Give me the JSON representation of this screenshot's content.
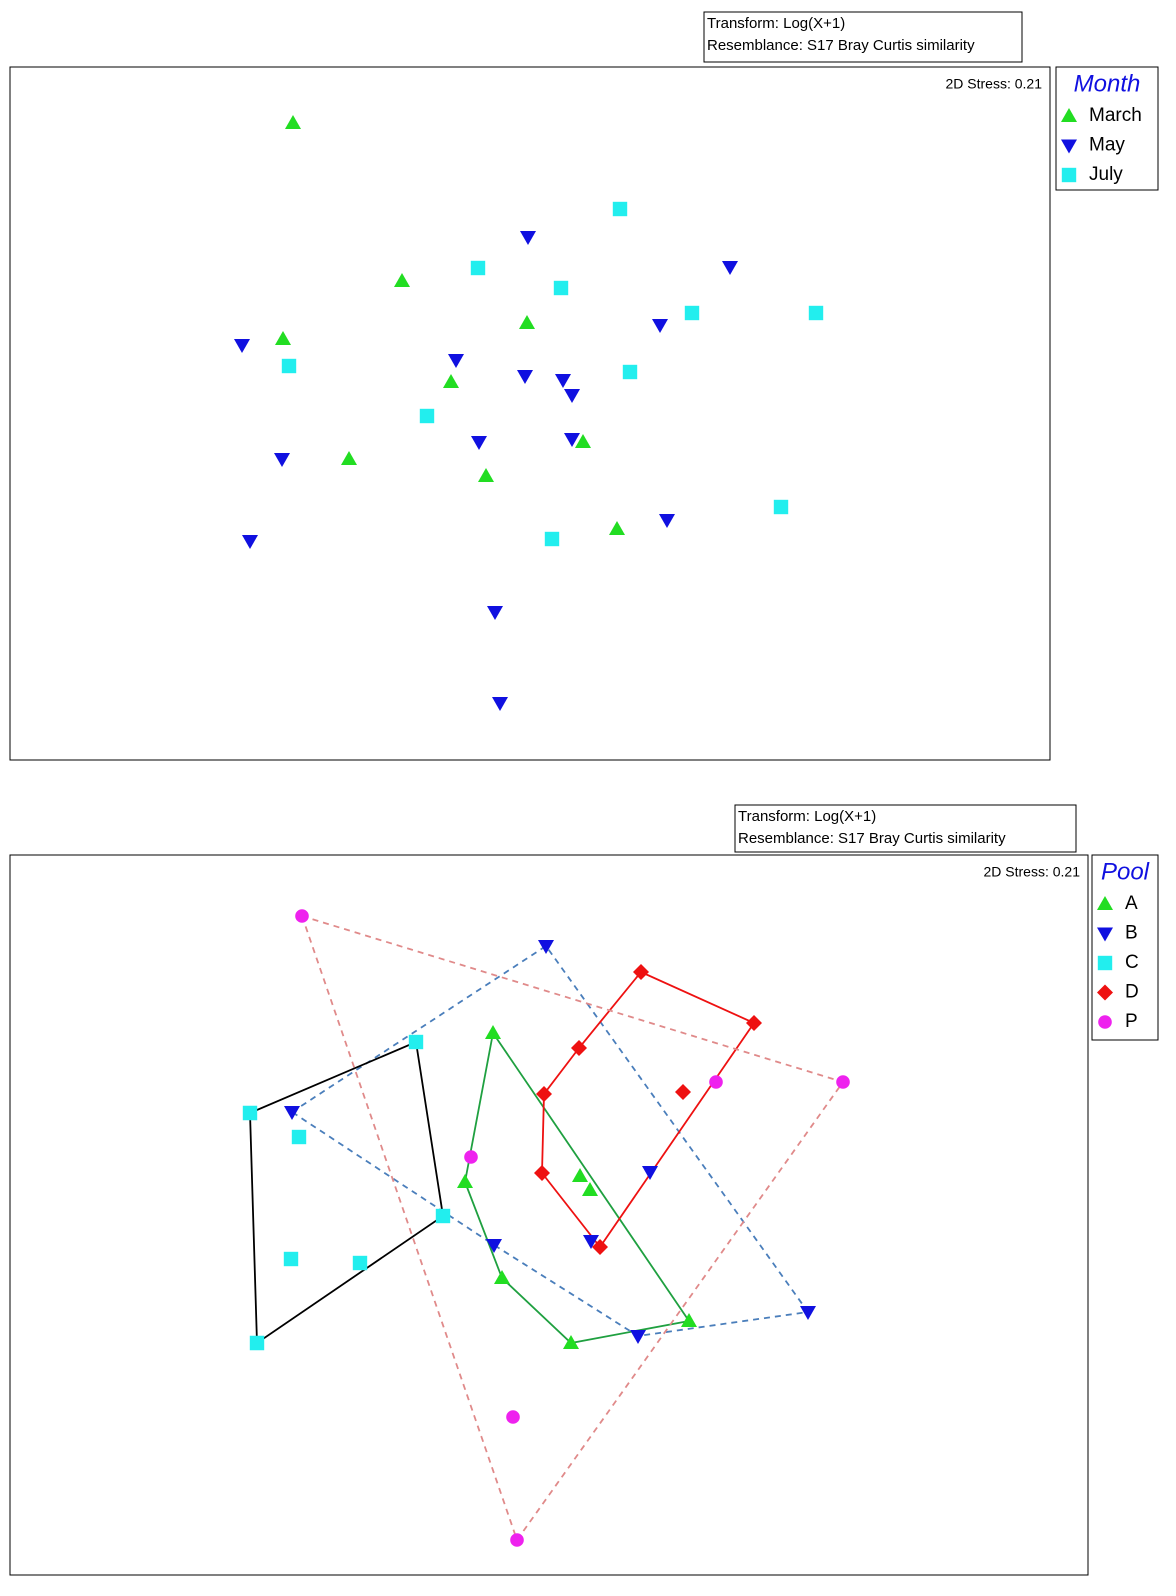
{
  "chart_data": [
    {
      "type": "scatter",
      "info_lines": [
        "Transform: Log(X+1)",
        "Resemblance: S17 Bray Curtis similarity"
      ],
      "stress": "2D Stress: 0.21",
      "legend_title": "Month",
      "legend": "right",
      "xlim": [
        0,
        1040
      ],
      "ylim": [
        0,
        693
      ],
      "series": [
        {
          "name": "March",
          "color": "#22dd22",
          "marker": "triangle-up",
          "x": [
            283,
            392,
            273,
            517,
            441,
            573,
            339,
            476,
            607
          ],
          "values": [
            637,
            479,
            421,
            437,
            378,
            318,
            301,
            284,
            231
          ]
        },
        {
          "name": "May",
          "color": "#1010e0",
          "marker": "triangle-down",
          "x": [
            518,
            720,
            650,
            232,
            446,
            515,
            553,
            562,
            469,
            562,
            272,
            657,
            240,
            485,
            490
          ],
          "values": [
            523,
            493,
            435,
            415,
            400,
            384,
            380,
            365,
            318,
            321,
            301,
            240,
            219,
            148,
            57
          ]
        },
        {
          "name": "July",
          "color": "#22eeee",
          "marker": "square",
          "x": [
            610,
            468,
            551,
            682,
            806,
            279,
            620,
            417,
            771,
            542
          ],
          "values": [
            551,
            492,
            472,
            447,
            447,
            394,
            388,
            344,
            253,
            221
          ]
        }
      ]
    },
    {
      "type": "scatter",
      "info_lines": [
        "Transform: Log(X+1)",
        "Resemblance: S17 Bray Curtis similarity"
      ],
      "stress": "2D Stress: 0.21",
      "legend_title": "Pool",
      "legend": "right",
      "xlim": [
        0,
        1078
      ],
      "ylim": [
        0,
        720
      ],
      "hulls": true,
      "series": [
        {
          "name": "A",
          "color": "#22dd22",
          "marker": "triangle-up",
          "hull_color": "#1fa040",
          "hull_dashed": false,
          "x": [
            483,
            455,
            570,
            580,
            492,
            561,
            679
          ],
          "values": [
            542,
            393,
            399,
            385,
            297,
            232,
            254
          ]
        },
        {
          "name": "B",
          "color": "#1010e0",
          "marker": "triangle-down",
          "hull_color": "#4a7ebb",
          "hull_dashed": true,
          "x": [
            536,
            282,
            640,
            484,
            581,
            798,
            628
          ],
          "values": [
            629,
            463,
            403,
            330,
            334,
            263,
            239
          ]
        },
        {
          "name": "C",
          "color": "#22eeee",
          "marker": "square",
          "hull_color": "#000000",
          "hull_dashed": false,
          "x": [
            406,
            240,
            289,
            433,
            281,
            350,
            247
          ],
          "values": [
            533,
            462,
            438,
            359,
            316,
            312,
            232
          ]
        },
        {
          "name": "D",
          "color": "#ee1111",
          "marker": "diamond",
          "hull_color": "#ee1111",
          "hull_dashed": false,
          "x": [
            631,
            744,
            569,
            673,
            534,
            532,
            590
          ],
          "values": [
            603,
            552,
            527,
            483,
            481,
            402,
            328
          ]
        },
        {
          "name": "P",
          "color": "#ee22ee",
          "marker": "circle",
          "hull_color": "#e08a8a",
          "hull_dashed": true,
          "x": [
            292,
            706,
            833,
            461,
            503,
            507
          ],
          "values": [
            659,
            493,
            493,
            418,
            158,
            35
          ]
        }
      ]
    }
  ]
}
